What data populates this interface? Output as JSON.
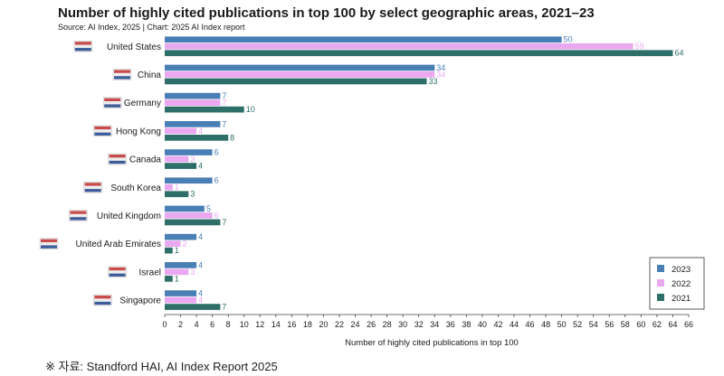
{
  "chart_data": {
    "type": "bar",
    "orientation": "horizontal",
    "title": "Number of highly cited publications in top 100 by select geographic areas, 2021–23",
    "subtitle": "Source: AI Index, 2025 | Chart: 2025 AI Index report",
    "xlabel": "Number of highly cited publications in top 100",
    "ylabel": "",
    "xlim": [
      0,
      66
    ],
    "xticks": [
      0,
      2,
      4,
      6,
      8,
      10,
      12,
      14,
      16,
      18,
      20,
      22,
      24,
      26,
      28,
      30,
      32,
      34,
      36,
      38,
      40,
      42,
      44,
      46,
      48,
      50,
      52,
      54,
      56,
      58,
      60,
      62,
      64,
      66
    ],
    "categories": [
      "United States",
      "China",
      "Germany",
      "Hong Kong",
      "Canada",
      "South Korea",
      "United Kingdom",
      "United Arab Emirates",
      "Israel",
      "Singapore"
    ],
    "series": [
      {
        "name": "2023",
        "color": "#4a7fb5",
        "label_color": "#4a7fb5",
        "values": [
          50,
          34,
          7,
          7,
          6,
          6,
          5,
          4,
          4,
          4
        ]
      },
      {
        "name": "2022",
        "color": "#e9a8f0",
        "label_color": "#e9a8f0",
        "values": [
          59,
          34,
          7,
          4,
          3,
          1,
          6,
          2,
          3,
          4
        ]
      },
      {
        "name": "2021",
        "color": "#2f6f6a",
        "label_color": "#2f6f6a",
        "values": [
          64,
          33,
          10,
          8,
          4,
          3,
          7,
          1,
          1,
          7
        ]
      }
    ],
    "legend_position": "bottom-right",
    "grid": false
  },
  "footer": "※ 자료: Standford HAI, AI Index Report 2025"
}
